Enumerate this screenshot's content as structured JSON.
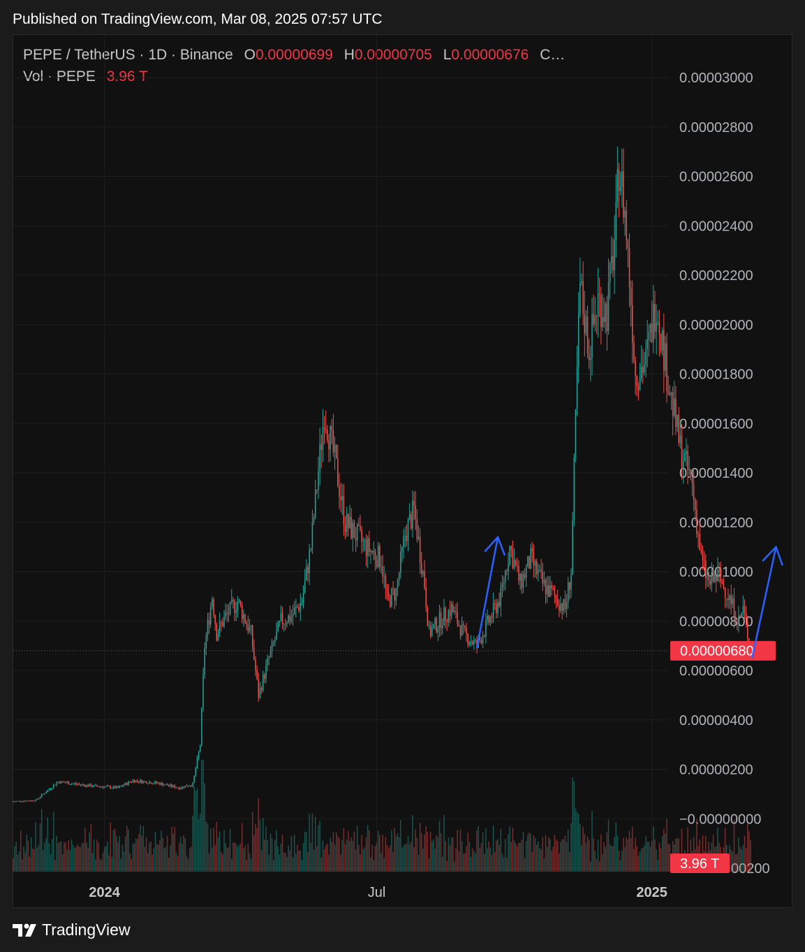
{
  "published": "Published on TradingView.com, Mar 08, 2025 07:57 UTC",
  "legend": {
    "symbol": "PEPE / TetherUS · 1D · Binance",
    "o_label": "O",
    "o_value": "0.00000699",
    "h_label": "H",
    "h_value": "0.00000705",
    "l_label": "L",
    "l_value": "0.00000676",
    "c_label": "C…",
    "vol_label": "Vol · PEPE",
    "vol_value": "3.96 T"
  },
  "footer": {
    "brand": "TradingView"
  },
  "colors": {
    "up": "#26a69a",
    "down": "#ef5350",
    "accent_red": "#f23645",
    "arrow": "#2962ff"
  },
  "chart_data": {
    "type": "candlestick",
    "title": "",
    "ylim": [
      -2e-06,
      3.05e-05
    ],
    "y_ticks": [
      "0.00003000",
      "0.00002800",
      "0.00002600",
      "0.00002400",
      "0.00002200",
      "0.00002000",
      "0.00001800",
      "0.00001600",
      "0.00001400",
      "0.00001200",
      "0.00001000",
      "0.00000800",
      "0.00000600",
      "0.00000400",
      "0.00000200",
      "−0.00000000",
      "−0.00000200"
    ],
    "y_tick_values": [
      3e-05,
      2.8e-05,
      2.6e-05,
      2.4e-05,
      2.2e-05,
      2e-05,
      1.8e-05,
      1.6e-05,
      1.4e-05,
      1.2e-05,
      1e-05,
      8e-06,
      6e-06,
      4e-06,
      2e-06,
      0,
      -2e-06
    ],
    "x_ticks": [
      {
        "label": "2024",
        "date": "2024-01-01",
        "bold": true
      },
      {
        "label": "Jul",
        "date": "2024-07-01",
        "bold": false
      },
      {
        "label": "2025",
        "date": "2025-01-01",
        "bold": true
      }
    ],
    "x_range": [
      "2023-11-01",
      "2025-05-10"
    ],
    "last_price": 6.8e-06,
    "last_price_label": "0.00000680",
    "last_volume_label": "3.96 T",
    "price_keypoints": [
      [
        "2023-11-01",
        7e-07
      ],
      [
        "2023-11-16",
        7.5e-07
      ],
      [
        "2023-12-01",
        1.5e-06
      ],
      [
        "2023-12-20",
        1.35e-06
      ],
      [
        "2024-01-10",
        1.25e-06
      ],
      [
        "2024-01-20",
        1.55e-06
      ],
      [
        "2024-02-05",
        1.45e-06
      ],
      [
        "2024-02-20",
        1.25e-06
      ],
      [
        "2024-02-29",
        1.4e-06
      ],
      [
        "2024-03-05",
        3e-06
      ],
      [
        "2024-03-08",
        7e-06
      ],
      [
        "2024-03-13",
        9e-06
      ],
      [
        "2024-03-16",
        7.5e-06
      ],
      [
        "2024-03-22",
        8.2e-06
      ],
      [
        "2024-03-30",
        8.8e-06
      ],
      [
        "2024-04-08",
        7.5e-06
      ],
      [
        "2024-04-13",
        5e-06
      ],
      [
        "2024-04-20",
        6.5e-06
      ],
      [
        "2024-04-28",
        8e-06
      ],
      [
        "2024-05-05",
        8.2e-06
      ],
      [
        "2024-05-12",
        8.8e-06
      ],
      [
        "2024-05-18",
        1.1e-05
      ],
      [
        "2024-05-22",
        1.35e-05
      ],
      [
        "2024-05-27",
        1.65e-05
      ],
      [
        "2024-06-03",
        1.45e-05
      ],
      [
        "2024-06-10",
        1.2e-05
      ],
      [
        "2024-06-17",
        1.15e-05
      ],
      [
        "2024-06-24",
        1.1e-05
      ],
      [
        "2024-07-04",
        1.05e-05
      ],
      [
        "2024-07-08",
        8.8e-06
      ],
      [
        "2024-07-14",
        9.2e-06
      ],
      [
        "2024-07-20",
        1.15e-05
      ],
      [
        "2024-07-26",
        1.25e-05
      ],
      [
        "2024-08-02",
        9.5e-06
      ],
      [
        "2024-08-05",
        7.5e-06
      ],
      [
        "2024-08-12",
        8e-06
      ],
      [
        "2024-08-20",
        8.5e-06
      ],
      [
        "2024-08-28",
        7.5e-06
      ],
      [
        "2024-09-06",
        7e-06
      ],
      [
        "2024-09-14",
        8e-06
      ],
      [
        "2024-09-22",
        9e-06
      ],
      [
        "2024-09-28",
        1.1e-05
      ],
      [
        "2024-10-05",
        9.5e-06
      ],
      [
        "2024-10-12",
        1.05e-05
      ],
      [
        "2024-10-20",
        9.5e-06
      ],
      [
        "2024-10-28",
        9e-06
      ],
      [
        "2024-11-04",
        8.5e-06
      ],
      [
        "2024-11-08",
        1e-05
      ],
      [
        "2024-11-12",
        1.8e-05
      ],
      [
        "2024-11-14",
        2.15e-05
      ],
      [
        "2024-11-20",
        1.9e-05
      ],
      [
        "2024-11-26",
        2.1e-05
      ],
      [
        "2024-12-02",
        2.05e-05
      ],
      [
        "2024-12-08",
        2.4e-05
      ],
      [
        "2024-12-10",
        2.65e-05
      ],
      [
        "2024-12-14",
        2.45e-05
      ],
      [
        "2024-12-18",
        2.1e-05
      ],
      [
        "2024-12-21",
        1.8e-05
      ],
      [
        "2024-12-28",
        1.85e-05
      ],
      [
        "2025-01-04",
        2.1e-05
      ],
      [
        "2025-01-10",
        1.85e-05
      ],
      [
        "2025-01-14",
        1.7e-05
      ],
      [
        "2025-01-20",
        1.5e-05
      ],
      [
        "2025-01-28",
        1.35e-05
      ],
      [
        "2025-02-03",
        1.05e-05
      ],
      [
        "2025-02-08",
        9.5e-06
      ],
      [
        "2025-02-14",
        9.8e-06
      ],
      [
        "2025-02-20",
        9.2e-06
      ],
      [
        "2025-02-28",
        8e-06
      ],
      [
        "2025-03-03",
        8.5e-06
      ],
      [
        "2025-03-08",
        6.8e-06
      ]
    ],
    "annotations": [
      {
        "type": "arrow",
        "from": [
          "2024-09-06",
          6.9e-06
        ],
        "to": [
          "2024-09-20",
          1.14e-05
        ],
        "color": "#2962ff"
      },
      {
        "type": "arrow",
        "from": [
          "2025-03-09",
          6.5e-06
        ],
        "to": [
          "2025-03-25",
          1.1e-05
        ],
        "color": "#2962ff"
      }
    ]
  }
}
